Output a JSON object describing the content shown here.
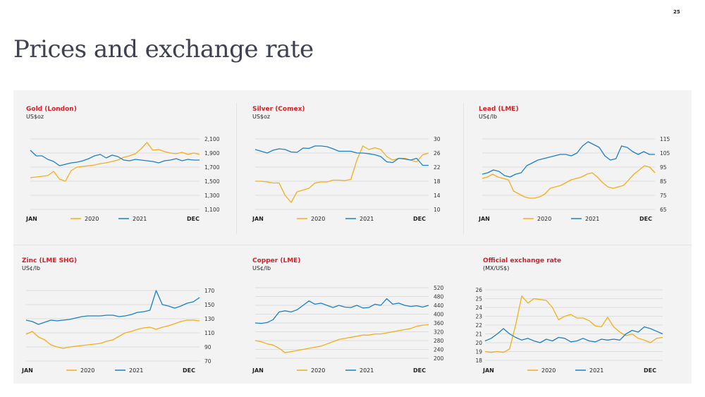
{
  "page": {
    "number": "25",
    "title": "Prices and exchange rate"
  },
  "colors": {
    "series_2020": "#f2ae1c",
    "series_2021": "#1d7fc4",
    "title_red": "#d41f26",
    "grid": "#d6d6d6",
    "tick_text": "#333333"
  },
  "chart_data": [
    {
      "type": "line",
      "title": "Gold (London)",
      "ylabel": "US$oz",
      "x_start_label": "JAN",
      "x_end_label": "DEC",
      "yaxis_side": "right",
      "yticks": [
        "2,100",
        "1,900",
        "1,700",
        "1,500",
        "1,300",
        "1,100"
      ],
      "ylim": [
        1100,
        2100
      ],
      "series": [
        {
          "name": "2020",
          "values": [
            1550,
            1560,
            1570,
            1580,
            1640,
            1530,
            1500,
            1650,
            1700,
            1710,
            1720,
            1730,
            1750,
            1760,
            1780,
            1800,
            1840,
            1860,
            1890,
            1960,
            2050,
            1940,
            1950,
            1920,
            1900,
            1890,
            1910,
            1880,
            1900,
            1880
          ]
        },
        {
          "name": "2021",
          "values": [
            1940,
            1860,
            1860,
            1810,
            1780,
            1720,
            1740,
            1760,
            1770,
            1790,
            1820,
            1860,
            1880,
            1830,
            1870,
            1850,
            1800,
            1790,
            1810,
            1800,
            1790,
            1780,
            1760,
            1790,
            1800,
            1820,
            1790,
            1810,
            1800,
            1800
          ]
        }
      ]
    },
    {
      "type": "line",
      "title": "Silver (Comex)",
      "ylabel": "US$oz",
      "x_start_label": "JAN",
      "x_end_label": "DEC",
      "yaxis_side": "right",
      "yticks": [
        "30",
        "26",
        "22",
        "18",
        "14",
        "10"
      ],
      "ylim": [
        10,
        30
      ],
      "series": [
        {
          "name": "2020",
          "values": [
            18,
            18,
            17.8,
            17.5,
            17.5,
            14,
            12,
            15,
            15.5,
            16,
            17.5,
            17.8,
            17.8,
            18.3,
            18.3,
            18.2,
            18.5,
            24,
            28,
            27,
            27.5,
            27,
            25,
            24,
            24.5,
            24.5,
            24,
            23.5,
            25.5,
            26
          ]
        },
        {
          "name": "2021",
          "values": [
            27,
            26.5,
            26,
            26.8,
            27.2,
            27,
            26.3,
            26.2,
            27.4,
            27.3,
            28,
            28,
            27.8,
            27.2,
            26.5,
            26.5,
            26.5,
            26,
            26,
            25.8,
            25.5,
            25,
            23.5,
            23.3,
            24.5,
            24.3,
            24,
            24.5,
            22.5,
            22.5
          ]
        }
      ]
    },
    {
      "type": "line",
      "title": "Lead (LME)",
      "ylabel": "US¢/lb",
      "x_start_label": "JAN",
      "x_end_label": "DEC",
      "yaxis_side": "right",
      "yticks": [
        "115",
        "105",
        "95",
        "85",
        "75",
        "65"
      ],
      "ylim": [
        65,
        115
      ],
      "series": [
        {
          "name": "2020",
          "values": [
            87,
            88,
            90,
            88,
            87,
            86,
            78,
            76,
            74,
            73,
            73,
            74,
            76,
            80,
            81,
            82,
            84,
            86,
            87,
            88,
            90,
            91,
            88,
            84,
            81,
            80,
            81,
            82,
            86,
            90,
            93,
            96,
            95,
            91
          ]
        },
        {
          "name": "2021",
          "values": [
            90,
            91,
            93,
            92,
            89,
            88,
            90,
            91,
            96,
            98,
            100,
            101,
            102,
            103,
            104,
            104,
            103,
            105,
            110,
            113,
            111,
            109,
            103,
            100,
            101,
            110,
            109,
            106,
            104,
            106,
            104,
            104
          ]
        }
      ]
    },
    {
      "type": "line",
      "title": "Zinc (LME SHG)",
      "ylabel": "US¢/lb",
      "x_start_label": "JAN",
      "x_end_label": "DEC",
      "yaxis_side": "right",
      "yticks": [
        "170",
        "150",
        "130",
        "110",
        "90",
        "70"
      ],
      "ylim": [
        70,
        170
      ],
      "series": [
        {
          "name": "2020",
          "values": [
            108,
            112,
            104,
            100,
            93,
            90,
            88,
            90,
            91,
            92,
            93,
            94,
            95,
            98,
            100,
            105,
            110,
            112,
            115,
            117,
            118,
            115,
            118,
            120,
            123,
            126,
            128,
            128,
            127
          ]
        },
        {
          "name": "2021",
          "values": [
            128,
            126,
            122,
            125,
            128,
            127,
            128,
            129,
            131,
            133,
            134,
            134,
            134,
            135,
            135,
            133,
            134,
            136,
            139,
            140,
            142,
            170,
            150,
            148,
            145,
            148,
            152,
            154,
            160
          ]
        }
      ]
    },
    {
      "type": "line",
      "title": "Copper (LME)",
      "ylabel": "US¢/lb",
      "x_start_label": "JAN",
      "x_end_label": "DEC",
      "yaxis_side": "right",
      "yticks": [
        "520",
        "480",
        "440",
        "400",
        "360",
        "320",
        "280",
        "240",
        "200"
      ],
      "ylim": [
        200,
        520
      ],
      "series": [
        {
          "name": "2020",
          "values": [
            280,
            275,
            265,
            260,
            245,
            225,
            230,
            235,
            240,
            245,
            250,
            255,
            265,
            275,
            285,
            290,
            295,
            300,
            305,
            305,
            310,
            310,
            315,
            320,
            325,
            330,
            335,
            345,
            350,
            352
          ]
        },
        {
          "name": "2021",
          "values": [
            360,
            358,
            362,
            375,
            410,
            415,
            410,
            420,
            440,
            460,
            445,
            450,
            440,
            430,
            440,
            432,
            430,
            440,
            428,
            430,
            445,
            440,
            470,
            445,
            450,
            440,
            435,
            438,
            432,
            440
          ]
        }
      ]
    },
    {
      "type": "line",
      "title": "Official exchange rate",
      "ylabel": "(MX/US$)",
      "x_start_label": "JAN",
      "x_end_label": "DEC",
      "yaxis_side": "left",
      "yticks": [
        "26",
        "25",
        "24",
        "23",
        "22",
        "21",
        "20",
        "19",
        "18"
      ],
      "ylim": [
        18,
        26
      ],
      "series": [
        {
          "name": "2020",
          "values": [
            19.0,
            18.9,
            19.0,
            18.9,
            19.3,
            22.0,
            25.3,
            24.5,
            25.0,
            24.9,
            24.8,
            24.0,
            22.6,
            23.0,
            23.2,
            22.8,
            22.8,
            22.5,
            21.9,
            21.8,
            22.9,
            21.8,
            21.2,
            20.8,
            21.0,
            20.5,
            20.3,
            20.0,
            20.5,
            20.6
          ]
        },
        {
          "name": "2021",
          "values": [
            20.2,
            20.5,
            21.0,
            21.6,
            21.0,
            20.6,
            20.3,
            20.5,
            20.2,
            20.0,
            20.4,
            20.2,
            20.6,
            20.5,
            20.1,
            20.2,
            20.5,
            20.2,
            20.1,
            20.4,
            20.3,
            20.4,
            20.3,
            21.0,
            21.4,
            21.2,
            21.8,
            21.6,
            21.3,
            21.0
          ]
        }
      ]
    }
  ]
}
